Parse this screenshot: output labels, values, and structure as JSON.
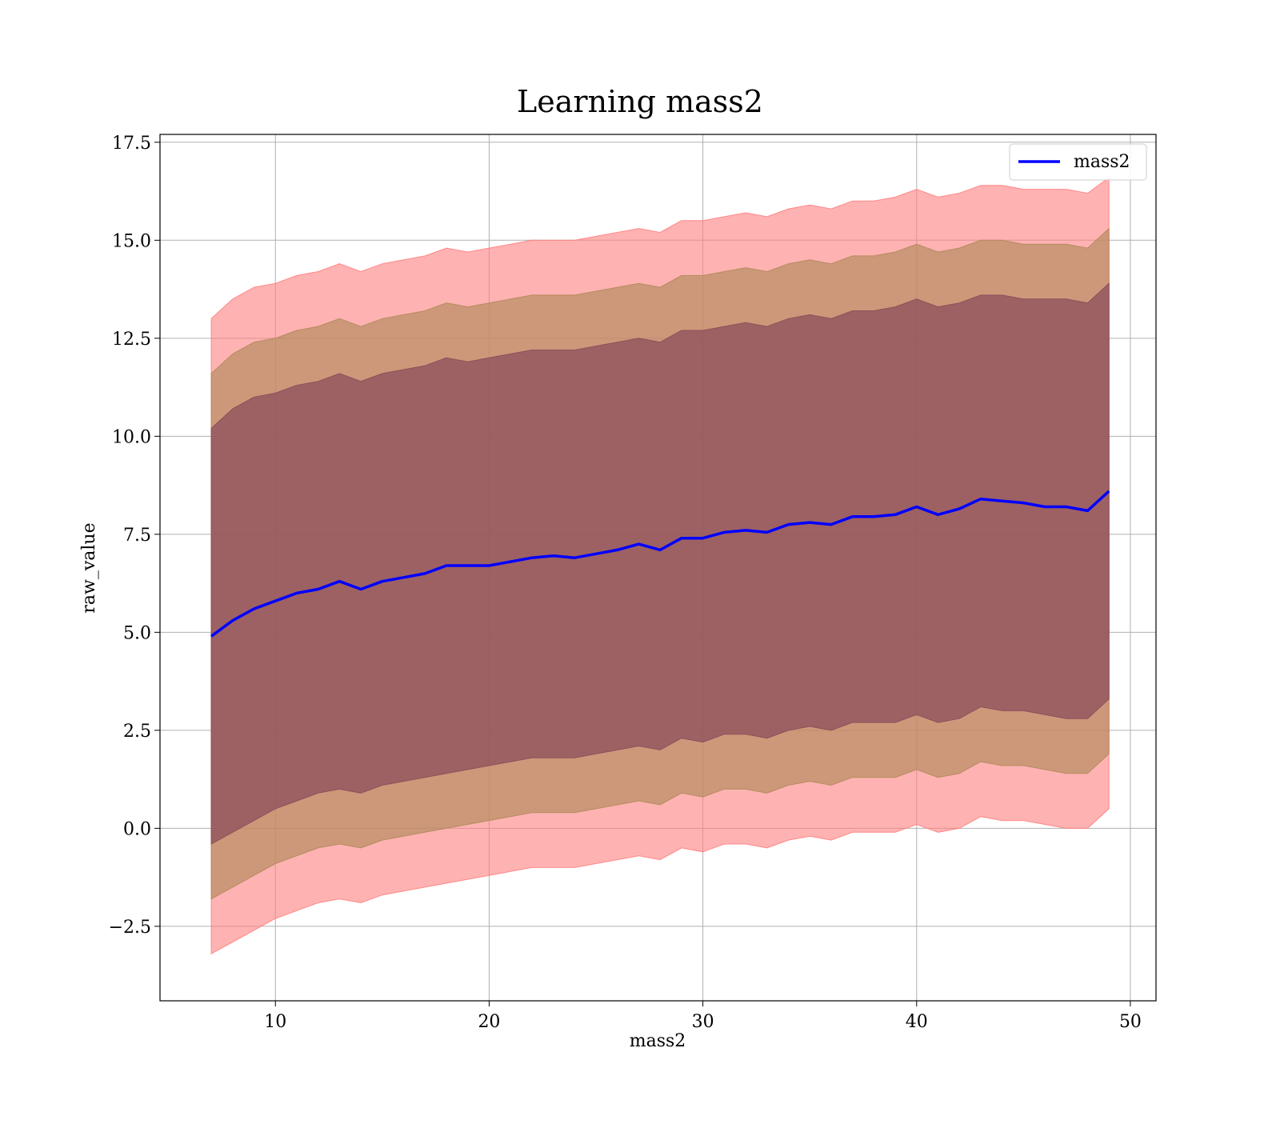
{
  "chart_data": {
    "type": "area",
    "title": "Learning mass2",
    "xlabel": "mass2",
    "ylabel": "raw_value",
    "xlim": [
      4.6,
      51.2
    ],
    "ylim": [
      -4.4,
      17.7
    ],
    "xticks": [
      10,
      20,
      30,
      40,
      50
    ],
    "yticks": [
      -2.5,
      0.0,
      2.5,
      5.0,
      7.5,
      10.0,
      12.5,
      15.0,
      17.5
    ],
    "xtick_labels": [
      "10",
      "20",
      "30",
      "40",
      "50"
    ],
    "ytick_labels": [
      "−2.5",
      "0.0",
      "2.5",
      "5.0",
      "7.5",
      "10.0",
      "12.5",
      "15.0",
      "17.5"
    ],
    "grid": true,
    "legend": {
      "position": "top-right",
      "entries": [
        "mass2"
      ]
    },
    "x": [
      7,
      8,
      9,
      10,
      11,
      12,
      13,
      14,
      15,
      16,
      17,
      18,
      19,
      20,
      21,
      22,
      23,
      24,
      25,
      26,
      27,
      28,
      29,
      30,
      31,
      32,
      33,
      34,
      35,
      36,
      37,
      38,
      39,
      40,
      41,
      42,
      43,
      44,
      45,
      46,
      47,
      48,
      49
    ],
    "series": [
      {
        "name": "mass2",
        "color": "#0000ff",
        "values": [
          4.9,
          5.3,
          5.6,
          5.8,
          6.0,
          6.1,
          6.3,
          6.1,
          6.3,
          6.4,
          6.5,
          6.7,
          6.7,
          6.7,
          6.8,
          6.9,
          6.95,
          6.9,
          7.0,
          7.1,
          7.25,
          7.1,
          7.4,
          7.4,
          7.55,
          7.6,
          7.55,
          7.75,
          7.8,
          7.75,
          7.95,
          7.95,
          8.0,
          8.2,
          8.0,
          8.15,
          8.4,
          8.35,
          8.3,
          8.2,
          8.2,
          8.1,
          8.6
        ]
      }
    ],
    "bands": [
      {
        "name": "band-3sigma",
        "color": "#ff7f7f",
        "opacity": 0.6,
        "lower": [
          -3.2,
          -2.9,
          -2.6,
          -2.3,
          -2.1,
          -1.9,
          -1.8,
          -1.9,
          -1.7,
          -1.6,
          -1.5,
          -1.4,
          -1.3,
          -1.2,
          -1.1,
          -1.0,
          -1.0,
          -1.0,
          -0.9,
          -0.8,
          -0.7,
          -0.8,
          -0.5,
          -0.6,
          -0.4,
          -0.4,
          -0.5,
          -0.3,
          -0.2,
          -0.3,
          -0.1,
          -0.1,
          -0.1,
          0.1,
          -0.1,
          0.0,
          0.3,
          0.2,
          0.2,
          0.1,
          0.0,
          0.0,
          0.5
        ],
        "upper": [
          13.0,
          13.5,
          13.8,
          13.9,
          14.1,
          14.2,
          14.4,
          14.2,
          14.4,
          14.5,
          14.6,
          14.8,
          14.7,
          14.8,
          14.9,
          15.0,
          15.0,
          15.0,
          15.1,
          15.2,
          15.3,
          15.2,
          15.5,
          15.5,
          15.6,
          15.7,
          15.6,
          15.8,
          15.9,
          15.8,
          16.0,
          16.0,
          16.1,
          16.3,
          16.1,
          16.2,
          16.4,
          16.4,
          16.3,
          16.3,
          16.3,
          16.2,
          16.6
        ]
      },
      {
        "name": "band-2sigma",
        "color": "#b08a5a",
        "opacity": 0.65,
        "lower": [
          -1.8,
          -1.5,
          -1.2,
          -0.9,
          -0.7,
          -0.5,
          -0.4,
          -0.5,
          -0.3,
          -0.2,
          -0.1,
          0.0,
          0.1,
          0.2,
          0.3,
          0.4,
          0.4,
          0.4,
          0.5,
          0.6,
          0.7,
          0.6,
          0.9,
          0.8,
          1.0,
          1.0,
          0.9,
          1.1,
          1.2,
          1.1,
          1.3,
          1.3,
          1.3,
          1.5,
          1.3,
          1.4,
          1.7,
          1.6,
          1.6,
          1.5,
          1.4,
          1.4,
          1.9
        ],
        "upper": [
          11.6,
          12.1,
          12.4,
          12.5,
          12.7,
          12.8,
          13.0,
          12.8,
          13.0,
          13.1,
          13.2,
          13.4,
          13.3,
          13.4,
          13.5,
          13.6,
          13.6,
          13.6,
          13.7,
          13.8,
          13.9,
          13.8,
          14.1,
          14.1,
          14.2,
          14.3,
          14.2,
          14.4,
          14.5,
          14.4,
          14.6,
          14.6,
          14.7,
          14.9,
          14.7,
          14.8,
          15.0,
          15.0,
          14.9,
          14.9,
          14.9,
          14.8,
          15.3
        ]
      },
      {
        "name": "band-1sigma",
        "color": "#8a4a5a",
        "opacity": 0.7,
        "lower": [
          -0.4,
          -0.1,
          0.2,
          0.5,
          0.7,
          0.9,
          1.0,
          0.9,
          1.1,
          1.2,
          1.3,
          1.4,
          1.5,
          1.6,
          1.7,
          1.8,
          1.8,
          1.8,
          1.9,
          2.0,
          2.1,
          2.0,
          2.3,
          2.2,
          2.4,
          2.4,
          2.3,
          2.5,
          2.6,
          2.5,
          2.7,
          2.7,
          2.7,
          2.9,
          2.7,
          2.8,
          3.1,
          3.0,
          3.0,
          2.9,
          2.8,
          2.8,
          3.3
        ],
        "upper": [
          10.2,
          10.7,
          11.0,
          11.1,
          11.3,
          11.4,
          11.6,
          11.4,
          11.6,
          11.7,
          11.8,
          12.0,
          11.9,
          12.0,
          12.1,
          12.2,
          12.2,
          12.2,
          12.3,
          12.4,
          12.5,
          12.4,
          12.7,
          12.7,
          12.8,
          12.9,
          12.8,
          13.0,
          13.1,
          13.0,
          13.2,
          13.2,
          13.3,
          13.5,
          13.3,
          13.4,
          13.6,
          13.6,
          13.5,
          13.5,
          13.5,
          13.4,
          13.9
        ]
      }
    ]
  }
}
